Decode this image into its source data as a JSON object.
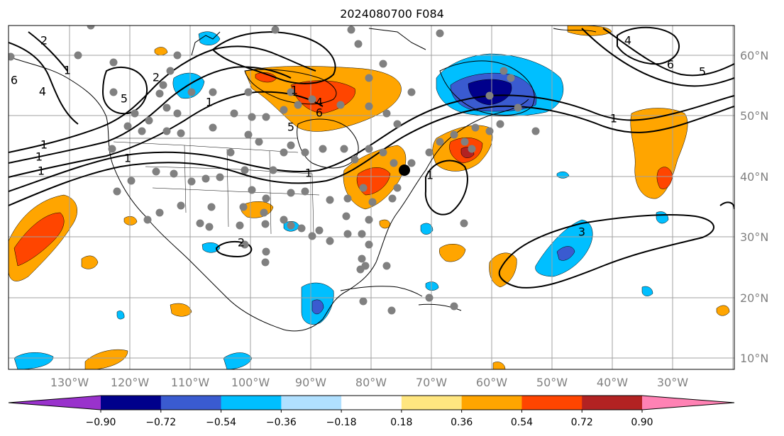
{
  "title": "2024080700 F084",
  "longitude_labels": [
    "130°W",
    "120°W",
    "110°W",
    "100°W",
    "90°W",
    "80°W",
    "70°W",
    "60°W",
    "50°W",
    "40°W",
    "30°W"
  ],
  "latitude_labels": [
    "60°N",
    "50°N",
    "40°N",
    "30°N",
    "20°N",
    "10°N"
  ],
  "colorbar": {
    "tick_labels": [
      "−0.90",
      "−0.72",
      "−0.54",
      "−0.36",
      "−0.18",
      "0.18",
      "0.36",
      "0.54",
      "0.72",
      "0.90"
    ],
    "colors": [
      "#9932cc",
      "#00008b",
      "#3a5bd0",
      "#00bfff",
      "#b0e0ff",
      "#ffffff",
      "#ffe680",
      "#ffa500",
      "#ff4500",
      "#b22222",
      "#ff82b4"
    ]
  },
  "shade_colors": {
    "pos_light": "#ffa500",
    "pos_mid": "#ff4500",
    "pos_dark": "#b22222",
    "neg_light": "#00bfff",
    "neg_mid": "#3a5bd0",
    "neg_dark": "#00008b"
  },
  "contour_labels": [
    "2",
    "1",
    "6",
    "4",
    "5",
    "2",
    "1",
    "4",
    "1",
    "6",
    "5",
    "1",
    "1",
    "1",
    "1",
    "1",
    "2",
    "1",
    "3",
    "4",
    "6",
    "5",
    "1"
  ],
  "marker": {
    "type": "black-dot"
  },
  "station_marker": {
    "type": "gray-dot"
  }
}
